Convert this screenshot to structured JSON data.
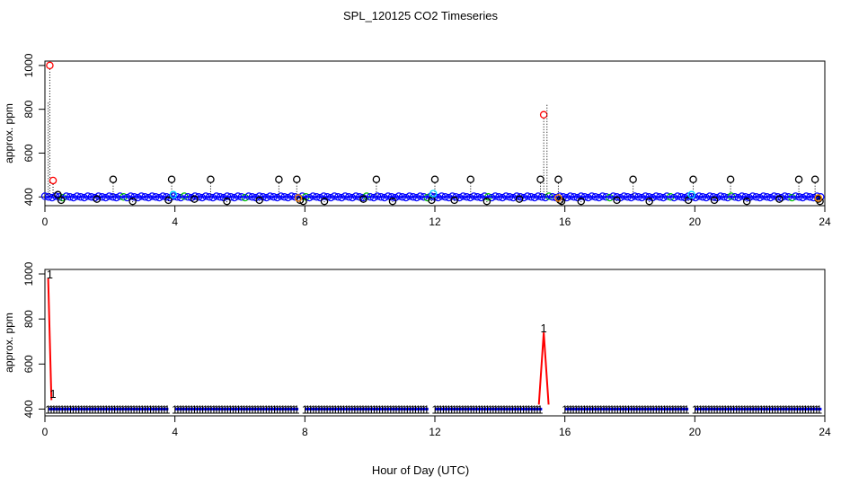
{
  "title": "SPL_120125  CO2 Timeseries",
  "xlabel": "Hour of Day (UTC)",
  "colors": {
    "baseline": "#0000ff",
    "spike": "#ff0000",
    "dropline": "#000000",
    "accent_cyan": "#00d8ff",
    "accent_orange": "#ff8c00",
    "accent_green": "#00c000"
  },
  "chart_data": [
    {
      "type": "scatter",
      "title": "",
      "xlabel": "",
      "ylabel": "approx. ppm",
      "xlim": [
        0,
        24
      ],
      "ylim": [
        360,
        1020
      ],
      "xticks": [
        0,
        4,
        8,
        12,
        16,
        20,
        24
      ],
      "yticks": [
        400,
        600,
        800,
        1000
      ],
      "grid": false,
      "legend": "none",
      "baseline_ppm": 400,
      "baseline_x_range": [
        0.0,
        23.9
      ],
      "series": [
        {
          "name": "",
          "points": [
            [
              0.15,
              1000
            ],
            [
              0.25,
              475
            ],
            [
              0.4,
              410
            ],
            [
              0.5,
              385
            ],
            [
              1.6,
              390
            ],
            [
              2.1,
              480
            ],
            [
              2.7,
              380
            ],
            [
              3.8,
              385
            ],
            [
              3.9,
              480
            ],
            [
              4.6,
              390
            ],
            [
              5.1,
              480
            ],
            [
              5.6,
              380
            ],
            [
              6.6,
              385
            ],
            [
              7.2,
              480
            ],
            [
              7.75,
              480
            ],
            [
              7.85,
              385
            ],
            [
              7.95,
              380
            ],
            [
              8.6,
              380
            ],
            [
              9.8,
              390
            ],
            [
              10.2,
              480
            ],
            [
              10.7,
              380
            ],
            [
              11.9,
              385
            ],
            [
              12.0,
              480
            ],
            [
              12.6,
              385
            ],
            [
              13.1,
              480
            ],
            [
              13.6,
              380
            ],
            [
              14.6,
              390
            ],
            [
              15.25,
              480
            ],
            [
              15.35,
              775
            ],
            [
              15.8,
              480
            ],
            [
              15.85,
              385
            ],
            [
              15.9,
              380
            ],
            [
              16.5,
              380
            ],
            [
              17.6,
              385
            ],
            [
              18.1,
              480
            ],
            [
              18.6,
              380
            ],
            [
              19.8,
              385
            ],
            [
              19.95,
              480
            ],
            [
              20.6,
              385
            ],
            [
              21.1,
              480
            ],
            [
              21.6,
              380
            ],
            [
              22.6,
              390
            ],
            [
              23.2,
              480
            ],
            [
              23.7,
              480
            ],
            [
              23.8,
              390
            ],
            [
              23.85,
              380
            ]
          ]
        }
      ]
    },
    {
      "type": "line",
      "title": "",
      "xlabel": "",
      "ylabel": "approx. ppm",
      "xlim": [
        0,
        24
      ],
      "ylim": [
        370,
        1020
      ],
      "xticks": [
        0,
        4,
        8,
        12,
        16,
        20,
        24
      ],
      "yticks": [
        400,
        600,
        800,
        1000
      ],
      "grid": false,
      "legend": "none",
      "marker_text": "1",
      "baseline_ppm": 400,
      "segments": [
        [
          0.1,
          3.8
        ],
        [
          4.0,
          7.8
        ],
        [
          8.0,
          11.8
        ],
        [
          12.0,
          15.3
        ],
        [
          16.0,
          19.8
        ],
        [
          20.0,
          23.9
        ]
      ],
      "spike_lines": [
        [
          [
            0.1,
            980
          ],
          [
            0.2,
            440
          ]
        ],
        [
          [
            15.2,
            420
          ],
          [
            15.35,
            740
          ],
          [
            15.5,
            420
          ]
        ]
      ],
      "labeled_points": [
        [
          0.15,
          1000
        ],
        [
          0.25,
          470
        ],
        [
          15.35,
          760
        ]
      ]
    }
  ]
}
